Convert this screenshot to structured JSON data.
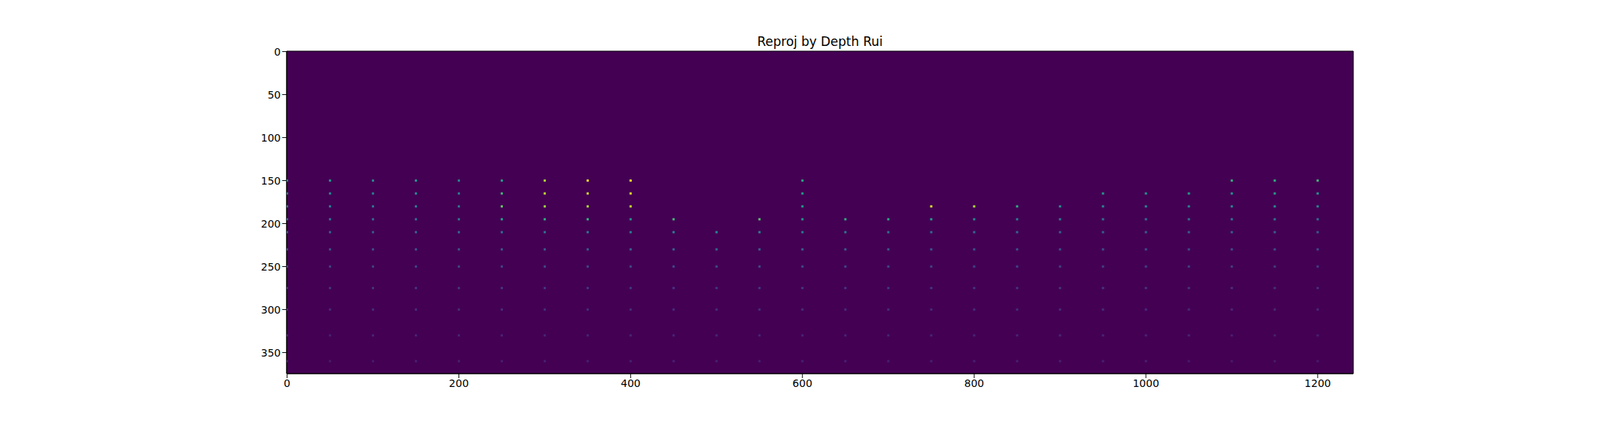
{
  "chart_data": {
    "type": "image",
    "title": "Reproj by Depth Rui",
    "xlim": [
      -0.5,
      1241.5
    ],
    "ylim": [
      374.5,
      -0.5
    ],
    "xticks": [
      0,
      200,
      400,
      600,
      800,
      1000,
      1200
    ],
    "yticks": [
      0,
      50,
      100,
      150,
      200,
      250,
      300,
      350
    ],
    "rows": [
      {
        "y": 150,
        "x": [
          0,
          50,
          100,
          150,
          200,
          250,
          300,
          350,
          400,
          600,
          1100,
          1150,
          1200
        ],
        "values": [
          38,
          40,
          37,
          42,
          36,
          45,
          70,
          78,
          80,
          48,
          52,
          50,
          55
        ]
      },
      {
        "y": 165,
        "x": [
          0,
          50,
          100,
          150,
          200,
          250,
          300,
          350,
          400,
          600,
          950,
          1000,
          1050,
          1100,
          1150,
          1200
        ],
        "values": [
          36,
          37,
          35,
          39,
          34,
          55,
          72,
          74,
          76,
          46,
          44,
          42,
          45,
          43,
          46,
          44
        ]
      },
      {
        "y": 180,
        "x": [
          0,
          50,
          100,
          150,
          200,
          250,
          300,
          350,
          400,
          600,
          750,
          800,
          850,
          900,
          950,
          1000,
          1050,
          1100,
          1150,
          1200
        ],
        "values": [
          32,
          33,
          31,
          34,
          30,
          60,
          68,
          70,
          72,
          44,
          75,
          70,
          50,
          40,
          38,
          37,
          36,
          38,
          39,
          37
        ]
      },
      {
        "y": 195,
        "x": [
          0,
          50,
          100,
          150,
          200,
          250,
          300,
          350,
          400,
          450,
          550,
          600,
          650,
          700,
          750,
          800,
          850,
          900,
          950,
          1000,
          1050,
          1100,
          1150,
          1200
        ],
        "values": [
          28,
          29,
          27,
          28,
          30,
          45,
          50,
          52,
          40,
          55,
          58,
          42,
          50,
          48,
          45,
          38,
          34,
          32,
          30,
          29,
          30,
          31,
          30,
          29
        ]
      },
      {
        "y": 210,
        "x": [
          0,
          50,
          100,
          150,
          200,
          250,
          300,
          350,
          400,
          450,
          500,
          550,
          600,
          650,
          700,
          750,
          800,
          850,
          900,
          950,
          1000,
          1050,
          1100,
          1150,
          1200
        ],
        "values": [
          24,
          24,
          23,
          25,
          26,
          28,
          30,
          32,
          34,
          36,
          38,
          36,
          34,
          32,
          30,
          28,
          27,
          26,
          25,
          25,
          24,
          24,
          25,
          24,
          23
        ]
      },
      {
        "y": 230,
        "x": [
          0,
          50,
          100,
          150,
          200,
          250,
          300,
          350,
          400,
          450,
          500,
          550,
          600,
          650,
          700,
          750,
          800,
          850,
          900,
          950,
          1000,
          1050,
          1100,
          1150,
          1200
        ],
        "values": [
          19,
          19,
          18,
          20,
          20,
          21,
          22,
          23,
          24,
          25,
          25,
          24,
          24,
          23,
          22,
          21,
          20,
          20,
          19,
          19,
          19,
          18,
          19,
          18,
          18
        ]
      },
      {
        "y": 250,
        "x": [
          0,
          50,
          100,
          150,
          200,
          250,
          300,
          350,
          400,
          450,
          500,
          550,
          600,
          650,
          700,
          750,
          800,
          850,
          900,
          950,
          1000,
          1050,
          1100,
          1150,
          1200
        ],
        "values": [
          15,
          15,
          15,
          16,
          16,
          16,
          17,
          17,
          17,
          18,
          18,
          18,
          18,
          17,
          17,
          16,
          16,
          16,
          15,
          15,
          15,
          15,
          15,
          14,
          14
        ]
      },
      {
        "y": 275,
        "x": [
          0,
          50,
          100,
          150,
          200,
          250,
          300,
          350,
          400,
          450,
          500,
          550,
          600,
          650,
          700,
          750,
          800,
          850,
          900,
          950,
          1000,
          1050,
          1100,
          1150,
          1200
        ],
        "values": [
          11,
          12,
          12,
          12,
          12,
          13,
          13,
          13,
          13,
          13,
          13,
          13,
          13,
          13,
          13,
          13,
          12,
          12,
          12,
          12,
          12,
          12,
          11,
          11,
          11
        ]
      },
      {
        "y": 300,
        "x": [
          0,
          50,
          100,
          150,
          200,
          250,
          300,
          350,
          400,
          450,
          500,
          550,
          600,
          650,
          700,
          750,
          800,
          850,
          900,
          950,
          1000,
          1050,
          1100,
          1150,
          1200
        ],
        "values": [
          9,
          9,
          10,
          10,
          10,
          10,
          10,
          10,
          10,
          10,
          10,
          10,
          10,
          10,
          10,
          10,
          10,
          10,
          10,
          10,
          10,
          9,
          9,
          9,
          9
        ]
      },
      {
        "y": 330,
        "x": [
          0,
          50,
          100,
          150,
          200,
          250,
          300,
          350,
          400,
          450,
          500,
          550,
          600,
          650,
          700,
          750,
          800,
          850,
          900,
          950,
          1000,
          1050,
          1100,
          1150,
          1200
        ],
        "values": [
          7,
          7,
          8,
          8,
          8,
          8,
          8,
          8,
          8,
          8,
          8,
          8,
          8,
          8,
          8,
          8,
          8,
          8,
          8,
          8,
          8,
          8,
          7,
          7,
          7
        ]
      },
      {
        "y": 360,
        "x": [
          0,
          50,
          100,
          150,
          200,
          250,
          300,
          350,
          400,
          450,
          500,
          550,
          600,
          650,
          700,
          750,
          800,
          850,
          900,
          950,
          1000,
          1050,
          1100,
          1150,
          1200
        ],
        "values": [
          6,
          6,
          6,
          7,
          7,
          7,
          7,
          7,
          7,
          7,
          7,
          7,
          7,
          7,
          7,
          7,
          7,
          7,
          7,
          7,
          7,
          6,
          6,
          6,
          6
        ]
      }
    ]
  }
}
